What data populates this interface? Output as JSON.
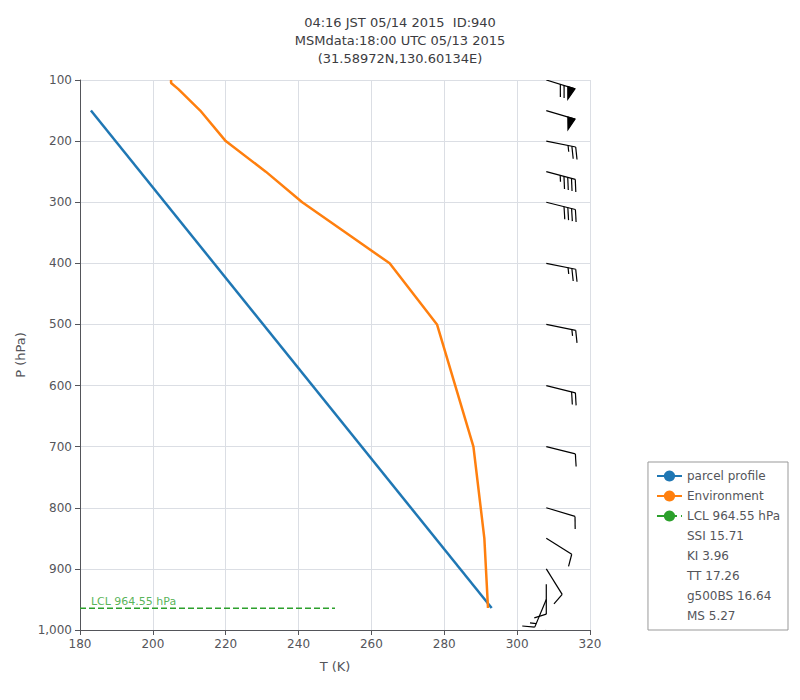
{
  "chart_data": {
    "type": "line",
    "title": "04:16 JST 05/14 2015  ID:940\nMSMdata:18:00 UTC 05/13 2015\n(31.58972N,130.60134E)",
    "xlabel": "T (K)",
    "ylabel": "P (hPa)",
    "xlim": [
      180,
      320
    ],
    "xticks": [
      180,
      200,
      220,
      240,
      260,
      280,
      300,
      320
    ],
    "ylim": [
      1000,
      100
    ],
    "yticks": [
      100,
      200,
      300,
      400,
      500,
      600,
      700,
      800,
      900,
      1000
    ],
    "grid": true,
    "legend": "lower right",
    "series": [
      {
        "name": "parcel profile",
        "type": "line",
        "color": "#1f77b4",
        "line_style": "solid",
        "x": [
          183,
          293
        ],
        "values": [
          150,
          964
        ]
      },
      {
        "name": "Environment",
        "type": "line",
        "color": "#ff7f0e",
        "line_style": "solid",
        "x": [
          205,
          205,
          207,
          213,
          220,
          231,
          241,
          253,
          265,
          278,
          288,
          291,
          292
        ],
        "values": [
          100,
          105,
          115,
          150,
          200,
          250,
          300,
          350,
          400,
          500,
          700,
          850,
          964
        ]
      },
      {
        "name": "LCL 964.55 hPa",
        "type": "line",
        "color": "#2ca02c",
        "line_style": "dashed",
        "x": [
          180,
          250
        ],
        "values": [
          964.55,
          964.55
        ]
      },
      {
        "type": "barbs",
        "color": "#000000",
        "x": 308,
        "values": [
          100,
          150,
          200,
          250,
          300,
          400,
          500,
          600,
          700,
          800,
          850,
          900,
          925,
          950,
          1000
        ],
        "u": [
          -65,
          -50,
          -25,
          -45,
          -40,
          -25,
          -15,
          -20,
          -12,
          -10,
          -8,
          -5,
          0,
          5,
          10
        ],
        "v": [
          20,
          15,
          5,
          12,
          10,
          5,
          3,
          5,
          3,
          3,
          5,
          8,
          10,
          12,
          20
        ]
      }
    ],
    "legend_extra": [
      "SSI 15.71",
      "KI 3.96",
      "TT 17.26",
      "g500BS 16.64",
      "MS 5.27"
    ],
    "annotations": [
      {
        "text": "LCL 964.55 hPa",
        "x": 183,
        "y": 952.55,
        "color": "#2ca02c"
      }
    ]
  }
}
